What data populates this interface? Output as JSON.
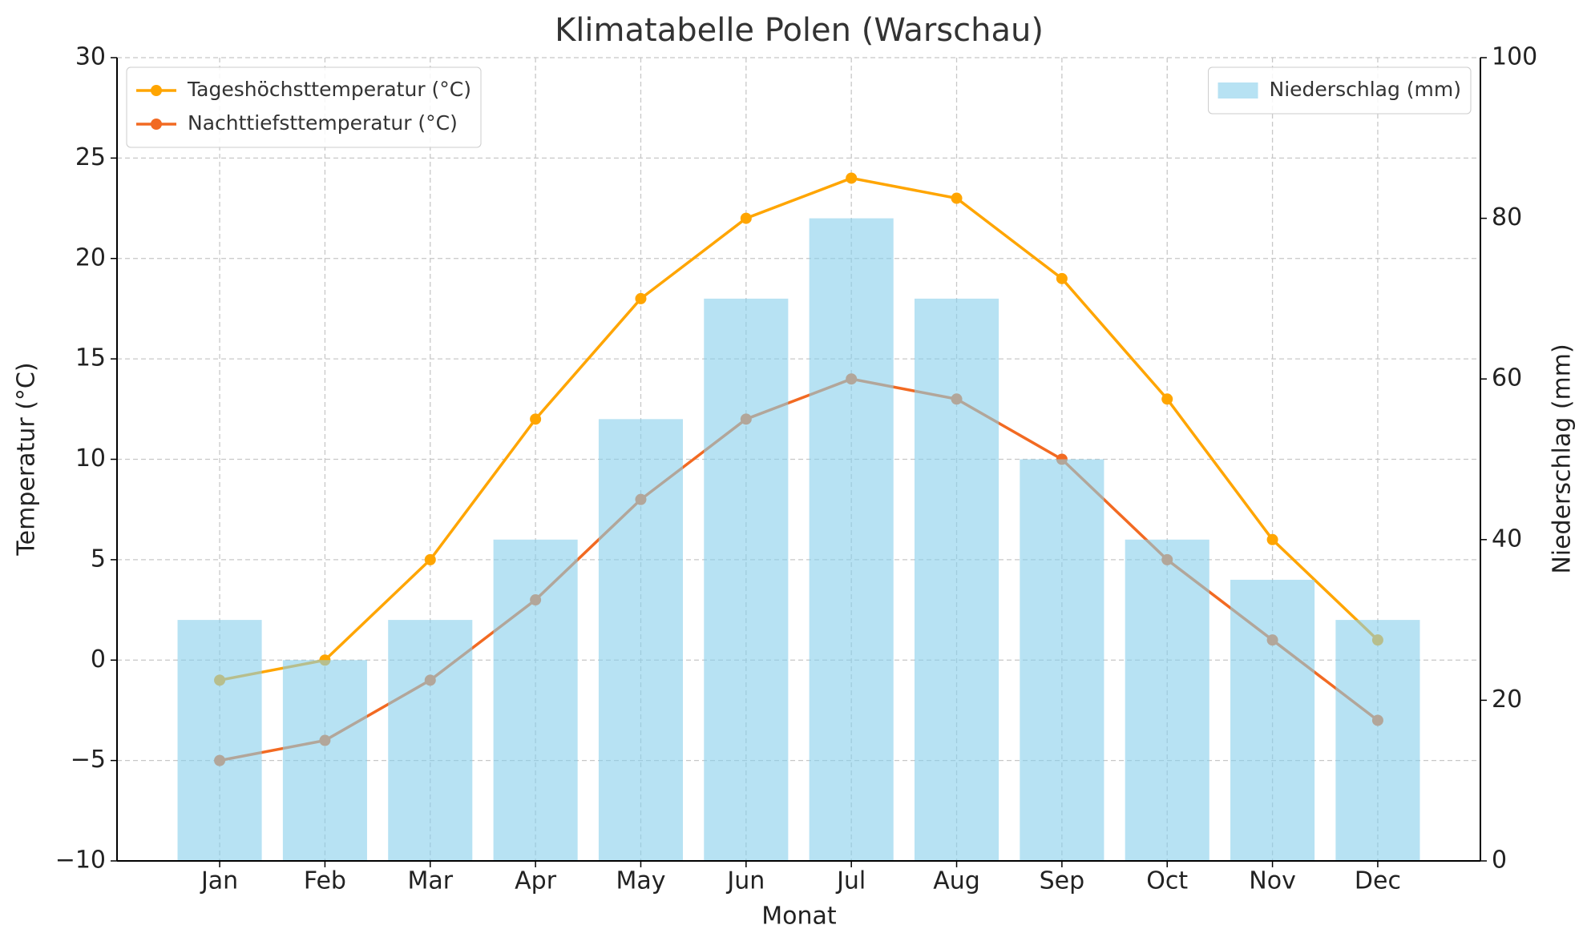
{
  "chart_data": {
    "type": "bar-line",
    "title": "Klimatabelle Polen (Warschau)",
    "xlabel": "Monat",
    "ylabel": "Temperatur (°C)",
    "y2label": "Niederschlag (mm)",
    "categories": [
      "Jan",
      "Feb",
      "Mar",
      "Apr",
      "May",
      "Jun",
      "Jul",
      "Aug",
      "Sep",
      "Oct",
      "Nov",
      "Dec"
    ],
    "series": [
      {
        "name": "Tageshöchsttemperatur (°C)",
        "type": "line",
        "color": "#FFA500",
        "values": [
          -1,
          0,
          5,
          12,
          18,
          22,
          24,
          23,
          19,
          13,
          6,
          1
        ]
      },
      {
        "name": "Nachttiefsttemperatur (°C)",
        "type": "line",
        "color": "#F26A22",
        "values": [
          -5,
          -4,
          -1,
          3,
          8,
          12,
          14,
          13,
          10,
          5,
          1,
          -3
        ]
      },
      {
        "name": "Niederschlag (mm)",
        "type": "bar",
        "axis": "y2",
        "color": "#87CEEB",
        "values": [
          30,
          25,
          30,
          40,
          55,
          70,
          80,
          70,
          50,
          40,
          35,
          30
        ]
      }
    ],
    "ylim": [
      -10,
      30
    ],
    "yticks": [
      {
        "value": -10,
        "label": "−10"
      },
      {
        "value": -5,
        "label": "−5"
      },
      0,
      5,
      10,
      15,
      20,
      25,
      30
    ],
    "y2lim": [
      0,
      100
    ],
    "y2ticks": [
      0,
      20,
      40,
      60,
      80,
      100
    ],
    "grid": true,
    "legend_loc": "upper left",
    "legend2_loc": "upper right"
  }
}
